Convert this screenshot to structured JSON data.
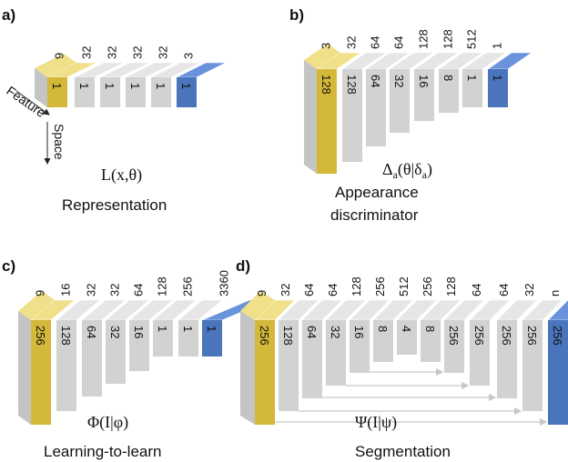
{
  "panels": [
    {
      "id": "a",
      "label": "a)",
      "caption": "Representation",
      "formula": "L(x,θ)",
      "axes": {
        "feature": "Feature",
        "space": "Space"
      },
      "blocks": [
        {
          "channels": "9",
          "size": "1",
          "color": "yellow"
        },
        {
          "channels": "32",
          "size": "1",
          "color": "gray"
        },
        {
          "channels": "32",
          "size": "1",
          "color": "gray"
        },
        {
          "channels": "32",
          "size": "1",
          "color": "gray"
        },
        {
          "channels": "32",
          "size": "1",
          "color": "gray"
        },
        {
          "channels": "3",
          "size": "1",
          "color": "blue"
        }
      ]
    },
    {
      "id": "b",
      "label": "b)",
      "caption_lines": [
        "Appearance",
        "discriminator"
      ],
      "formula": "Δa(θ|δa)",
      "blocks": [
        {
          "channels": "3",
          "size": "128",
          "color": "yellow"
        },
        {
          "channels": "32",
          "size": "128",
          "color": "gray"
        },
        {
          "channels": "64",
          "size": "64",
          "color": "gray"
        },
        {
          "channels": "64",
          "size": "32",
          "color": "gray"
        },
        {
          "channels": "128",
          "size": "16",
          "color": "gray"
        },
        {
          "channels": "128",
          "size": "8",
          "color": "gray"
        },
        {
          "channels": "512",
          "size": "1",
          "color": "gray"
        },
        {
          "channels": "1",
          "size": "1",
          "color": "blue"
        }
      ]
    },
    {
      "id": "c",
      "label": "c)",
      "caption": "Learning-to-learn",
      "formula": "Φ(I|φ)",
      "blocks": [
        {
          "channels": "9",
          "size": "256",
          "color": "yellow"
        },
        {
          "channels": "16",
          "size": "128",
          "color": "gray"
        },
        {
          "channels": "32",
          "size": "64",
          "color": "gray"
        },
        {
          "channels": "32",
          "size": "32",
          "color": "gray"
        },
        {
          "channels": "64",
          "size": "16",
          "color": "gray"
        },
        {
          "channels": "128",
          "size": "1",
          "color": "gray"
        },
        {
          "channels": "256",
          "size": "1",
          "color": "gray"
        },
        {
          "channels": "3360",
          "size": "1",
          "color": "blue"
        }
      ]
    },
    {
      "id": "d",
      "label": "d)",
      "caption": "Segmentation",
      "formula": "Ψ(I|ψ)",
      "blocks": [
        {
          "channels": "9",
          "size": "256",
          "color": "yellow"
        },
        {
          "channels": "32",
          "size": "128",
          "color": "gray"
        },
        {
          "channels": "64",
          "size": "64",
          "color": "gray"
        },
        {
          "channels": "64",
          "size": "32",
          "color": "gray"
        },
        {
          "channels": "128",
          "size": "16",
          "color": "gray"
        },
        {
          "channels": "256",
          "size": "8",
          "color": "gray"
        },
        {
          "channels": "512",
          "size": "4",
          "color": "gray"
        },
        {
          "channels": "256",
          "size": "8",
          "color": "gray"
        },
        {
          "channels": "128",
          "size": "256",
          "color": "gray"
        },
        {
          "channels": "64",
          "size": "256",
          "color": "gray"
        },
        {
          "channels": "64",
          "size": "256",
          "color": "gray"
        },
        {
          "channels": "32",
          "size": "256",
          "color": "gray"
        },
        {
          "channels": "n",
          "size": "256",
          "color": "blue"
        }
      ]
    }
  ],
  "colors": {
    "yellow_front": "#d4b83a",
    "yellow_top": "#f1e08a",
    "yellow_side": "#b39a28",
    "gray_front": "#d2d2d2",
    "gray_top": "#e6e6e6",
    "gray_side": "#bdbdbd",
    "blue_front": "#4a74bb",
    "blue_top": "#6a93dc",
    "blue_side": "#3a5f9e",
    "skip_arrow": "#c8c8c8"
  }
}
